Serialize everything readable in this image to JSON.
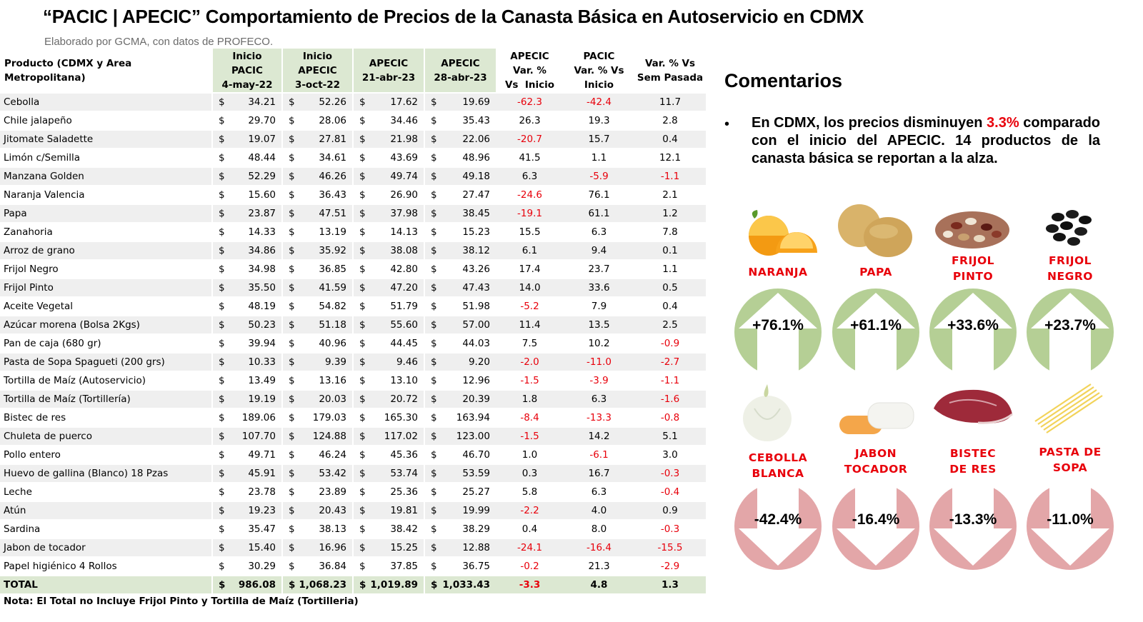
{
  "header": {
    "title": "“PACIC | APECIC” Comportamiento de Precios de la Canasta Básica en Autoservicio en CDMX",
    "subtitle": "Elaborado por GCMA, con datos de PROFECO."
  },
  "table": {
    "col_product": "Producto (CDMX y Area Metropolitana)",
    "col_pacic": [
      "Inicio",
      "PACIC",
      "4-may-22"
    ],
    "col_apecic": [
      "Inicio",
      "APECIC",
      "3-oct-22"
    ],
    "col_apr21": [
      "APECIC",
      "21-abr-23"
    ],
    "col_apr28": [
      "APECIC",
      "28-abr-23"
    ],
    "col_var_apecic": [
      "APECIC",
      "Var. %",
      "Vs  Inicio"
    ],
    "col_var_pacic": [
      "PACIC",
      "Var. % Vs",
      "Inicio"
    ],
    "col_var_sem": [
      "Var. % Vs",
      "Sem Pasada"
    ],
    "currency": "$",
    "rows": [
      {
        "name": "Cebolla",
        "p1": "34.21",
        "p2": "52.26",
        "p3": "17.62",
        "p4": "19.69",
        "v1": "-62.3",
        "v2": "-42.4",
        "v3": "11.7"
      },
      {
        "name": "Chile jalapeño",
        "p1": "29.70",
        "p2": "28.06",
        "p3": "34.46",
        "p4": "35.43",
        "v1": "26.3",
        "v2": "19.3",
        "v3": "2.8"
      },
      {
        "name": "Jitomate Saladette",
        "p1": "19.07",
        "p2": "27.81",
        "p3": "21.98",
        "p4": "22.06",
        "v1": "-20.7",
        "v2": "15.7",
        "v3": "0.4"
      },
      {
        "name": "Limón c/Semilla",
        "p1": "48.44",
        "p2": "34.61",
        "p3": "43.69",
        "p4": "48.96",
        "v1": "41.5",
        "v2": "1.1",
        "v3": "12.1"
      },
      {
        "name": "Manzana Golden",
        "p1": "52.29",
        "p2": "46.26",
        "p3": "49.74",
        "p4": "49.18",
        "v1": "6.3",
        "v2": "-5.9",
        "v3": "-1.1"
      },
      {
        "name": "Naranja Valencia",
        "p1": "15.60",
        "p2": "36.43",
        "p3": "26.90",
        "p4": "27.47",
        "v1": "-24.6",
        "v2": "76.1",
        "v3": "2.1"
      },
      {
        "name": "Papa",
        "p1": "23.87",
        "p2": "47.51",
        "p3": "37.98",
        "p4": "38.45",
        "v1": "-19.1",
        "v2": "61.1",
        "v3": "1.2"
      },
      {
        "name": "Zanahoria",
        "p1": "14.33",
        "p2": "13.19",
        "p3": "14.13",
        "p4": "15.23",
        "v1": "15.5",
        "v2": "6.3",
        "v3": "7.8"
      },
      {
        "name": "Arroz de grano",
        "p1": "34.86",
        "p2": "35.92",
        "p3": "38.08",
        "p4": "38.12",
        "v1": "6.1",
        "v2": "9.4",
        "v3": "0.1"
      },
      {
        "name": "Frijol Negro",
        "p1": "34.98",
        "p2": "36.85",
        "p3": "42.80",
        "p4": "43.26",
        "v1": "17.4",
        "v2": "23.7",
        "v3": "1.1"
      },
      {
        "name": "Frijol Pinto",
        "p1": "35.50",
        "p2": "41.59",
        "p3": "47.20",
        "p4": "47.43",
        "v1": "14.0",
        "v2": "33.6",
        "v3": "0.5"
      },
      {
        "name": "Aceite Vegetal",
        "p1": "48.19",
        "p2": "54.82",
        "p3": "51.79",
        "p4": "51.98",
        "v1": "-5.2",
        "v2": "7.9",
        "v3": "0.4"
      },
      {
        "name": "Azúcar morena (Bolsa 2Kgs)",
        "p1": "50.23",
        "p2": "51.18",
        "p3": "55.60",
        "p4": "57.00",
        "v1": "11.4",
        "v2": "13.5",
        "v3": "2.5"
      },
      {
        "name": "Pan de caja (680 gr)",
        "p1": "39.94",
        "p2": "40.96",
        "p3": "44.45",
        "p4": "44.03",
        "v1": "7.5",
        "v2": "10.2",
        "v3": "-0.9"
      },
      {
        "name": "Pasta de Sopa Spagueti (200 grs)",
        "p1": "10.33",
        "p2": "9.39",
        "p3": "9.46",
        "p4": "9.20",
        "v1": "-2.0",
        "v2": "-11.0",
        "v3": "-2.7"
      },
      {
        "name": "Tortilla de Maíz (Autoservicio)",
        "p1": "13.49",
        "p2": "13.16",
        "p3": "13.10",
        "p4": "12.96",
        "v1": "-1.5",
        "v2": "-3.9",
        "v3": "-1.1"
      },
      {
        "name": "Tortilla de Maíz (Tortillería)",
        "p1": "19.19",
        "p2": "20.03",
        "p3": "20.72",
        "p4": "20.39",
        "v1": "1.8",
        "v2": "6.3",
        "v3": "-1.6"
      },
      {
        "name": "Bistec de res",
        "p1": "189.06",
        "p2": "179.03",
        "p3": "165.30",
        "p4": "163.94",
        "v1": "-8.4",
        "v2": "-13.3",
        "v3": "-0.8"
      },
      {
        "name": "Chuleta de puerco",
        "p1": "107.70",
        "p2": "124.88",
        "p3": "117.02",
        "p4": "123.00",
        "v1": "-1.5",
        "v2": "14.2",
        "v3": "5.1"
      },
      {
        "name": "Pollo entero",
        "p1": "49.71",
        "p2": "46.24",
        "p3": "45.36",
        "p4": "46.70",
        "v1": "1.0",
        "v2": "-6.1",
        "v3": "3.0"
      },
      {
        "name": "Huevo de gallina (Blanco) 18 Pzas",
        "p1": "45.91",
        "p2": "53.42",
        "p3": "53.74",
        "p4": "53.59",
        "v1": "0.3",
        "v2": "16.7",
        "v3": "-0.3"
      },
      {
        "name": "Leche",
        "p1": "23.78",
        "p2": "23.89",
        "p3": "25.36",
        "p4": "25.27",
        "v1": "5.8",
        "v2": "6.3",
        "v3": "-0.4"
      },
      {
        "name": "Atún",
        "p1": "19.23",
        "p2": "20.43",
        "p3": "19.81",
        "p4": "19.99",
        "v1": "-2.2",
        "v2": "4.0",
        "v3": "0.9"
      },
      {
        "name": "Sardina",
        "p1": "35.47",
        "p2": "38.13",
        "p3": "38.42",
        "p4": "38.29",
        "v1": "0.4",
        "v2": "8.0",
        "v3": "-0.3"
      },
      {
        "name": "Jabon de tocador",
        "p1": "15.40",
        "p2": "16.96",
        "p3": "15.25",
        "p4": "12.88",
        "v1": "-24.1",
        "v2": "-16.4",
        "v3": "-15.5"
      },
      {
        "name": "Papel higiénico 4 Rollos",
        "p1": "30.29",
        "p2": "36.84",
        "p3": "37.85",
        "p4": "36.75",
        "v1": "-0.2",
        "v2": "21.3",
        "v3": "-2.9"
      }
    ],
    "total": {
      "name": "TOTAL",
      "p1": "986.08",
      "p2": "1,068.23",
      "p3": "1,019.89",
      "p4": "1,033.43",
      "v1": "-3.3",
      "v2": "4.8",
      "v3": "1.3"
    }
  },
  "note": "Nota: El Total no Incluye Frijol Pinto y Tortilla de Maíz (Tortilleria)",
  "comments": {
    "title": "Comentarios",
    "bullet": "•",
    "text_before": "En CDMX, los precios disminuyen ",
    "highlight": "3.3%",
    "text_after": " comparado con el inicio del APECIC. 14 productos de la canasta básica se reportan a la alza."
  },
  "cards_up": [
    {
      "label": [
        "NARANJA"
      ],
      "value": "+76.1%",
      "icon": "orange-icon"
    },
    {
      "label": [
        "PAPA"
      ],
      "value": "+61.1%",
      "icon": "potato-icon"
    },
    {
      "label": [
        "FRIJOL",
        "PINTO"
      ],
      "value": "+33.6%",
      "icon": "pinto-beans-icon"
    },
    {
      "label": [
        "FRIJOL",
        "NEGRO"
      ],
      "value": "+23.7%",
      "icon": "black-beans-icon"
    }
  ],
  "cards_down": [
    {
      "label": [
        "CEBOLLA",
        "BLANCA"
      ],
      "value": "-42.4%",
      "icon": "onion-icon"
    },
    {
      "label": [
        "JABON",
        "TOCADOR"
      ],
      "value": "-16.4%",
      "icon": "soap-icon"
    },
    {
      "label": [
        "BISTEC",
        "DE RES"
      ],
      "value": "-13.3%",
      "icon": "steak-icon"
    },
    {
      "label": [
        "PASTA DE",
        "SOPA"
      ],
      "value": "-11.0%",
      "icon": "pasta-icon"
    }
  ],
  "colors": {
    "red": "#e8000b",
    "green_header": "#dce8d2",
    "up_circle": "#b5cf95",
    "down_circle": "#e3a6a8",
    "stripe": "#efefef"
  }
}
